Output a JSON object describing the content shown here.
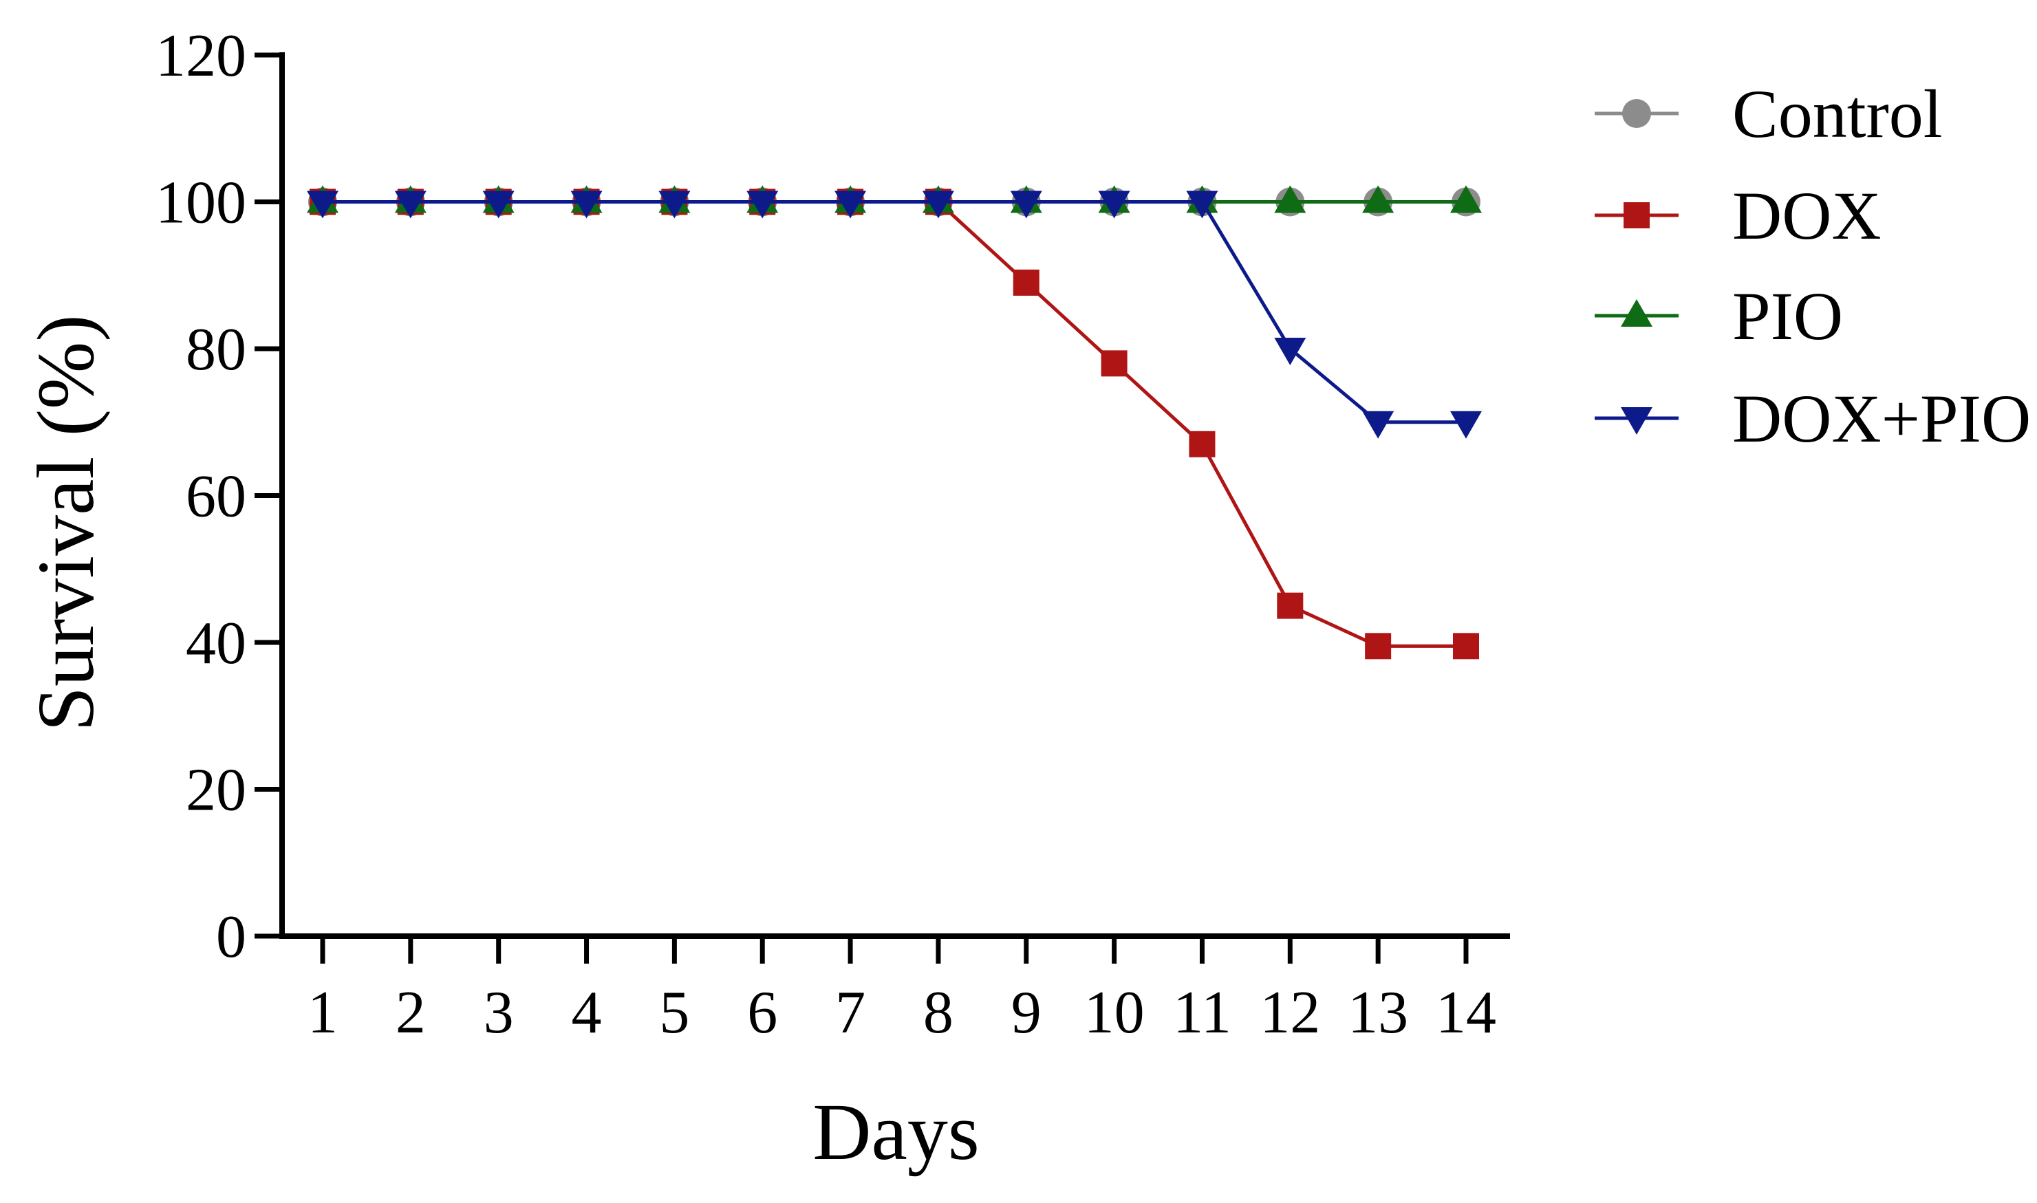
{
  "chart_data": {
    "type": "line",
    "title": "",
    "xlabel": "Days",
    "ylabel": "Survival (%)",
    "categories": [
      "1",
      "2",
      "3",
      "4",
      "5",
      "6",
      "7",
      "8",
      "9",
      "10",
      "11",
      "12",
      "13",
      "14"
    ],
    "ylim": [
      0,
      120
    ],
    "yticks": [
      "0",
      "20",
      "40",
      "60",
      "80",
      "100",
      "120"
    ],
    "grid": false,
    "legend_position": "top-right",
    "series": [
      {
        "name": "Control",
        "marker": "circle",
        "color": "#8c8c8c",
        "values": [
          100,
          100,
          100,
          100,
          100,
          100,
          100,
          100,
          100,
          100,
          100,
          100,
          100,
          100
        ]
      },
      {
        "name": "DOX",
        "marker": "square",
        "color": "#b01515",
        "values": [
          100,
          100,
          100,
          100,
          100,
          100,
          100,
          100,
          89,
          78,
          67,
          45,
          39.5,
          39.5
        ]
      },
      {
        "name": "PIO",
        "marker": "triangle-up",
        "color": "#0f6b14",
        "values": [
          100,
          100,
          100,
          100,
          100,
          100,
          100,
          100,
          100,
          100,
          100,
          100,
          100,
          100
        ]
      },
      {
        "name": "DOX+PIO",
        "marker": "triangle-down",
        "color": "#0d1a8a",
        "values": [
          100,
          100,
          100,
          100,
          100,
          100,
          100,
          100,
          100,
          100,
          100,
          80,
          70,
          70
        ]
      }
    ]
  }
}
